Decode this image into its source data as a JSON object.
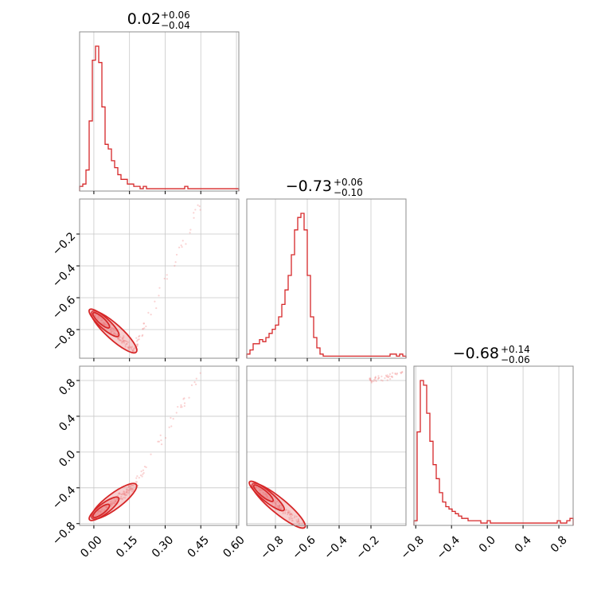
{
  "chart_data": {
    "type": "corner",
    "color": "#d62728",
    "parameters": [
      {
        "title_value": "0.02",
        "title_upper": "+0.06",
        "title_lower": "−0.04",
        "range": [
          -0.06,
          0.61
        ],
        "ticks": [
          0.0,
          0.15,
          0.3,
          0.45,
          0.6
        ],
        "tick_labels": [
          "0.00",
          "0.15",
          "0.30",
          "0.45",
          "0.60"
        ]
      },
      {
        "title_value": "−0.73",
        "title_upper": "+0.06",
        "title_lower": "−0.10",
        "range": [
          -0.98,
          0.02
        ],
        "ticks": [
          -0.8,
          -0.6,
          -0.4,
          -0.2
        ],
        "tick_labels": [
          "−0.8",
          "−0.6",
          "−0.4",
          "−0.2"
        ]
      },
      {
        "title_value": "−0.68",
        "title_upper": "+0.14",
        "title_lower": "−0.06",
        "range": [
          -0.82,
          0.96
        ],
        "ticks": [
          -0.8,
          -0.4,
          0.0,
          0.4,
          0.8
        ],
        "tick_labels": [
          "−0.8",
          "−0.4",
          "0.0",
          "0.4",
          "0.8"
        ]
      }
    ],
    "histograms": [
      {
        "bin_edges_range": [
          -0.06,
          0.61
        ],
        "counts": [
          2,
          3,
          9,
          30,
          56,
          62,
          55,
          36,
          20,
          18,
          13,
          10,
          7,
          5,
          5,
          3,
          3,
          2,
          2,
          1,
          2,
          1,
          1,
          1,
          1,
          1,
          1,
          1,
          1,
          1,
          1,
          1,
          1,
          2,
          1,
          1,
          1,
          1,
          1,
          1,
          1,
          1,
          1,
          1,
          1,
          1,
          1,
          1,
          1,
          1
        ]
      },
      {
        "bin_edges_range": [
          -0.98,
          0.02
        ],
        "counts": [
          2,
          4,
          7,
          7,
          9,
          8,
          10,
          12,
          14,
          16,
          20,
          26,
          33,
          40,
          50,
          62,
          68,
          70,
          62,
          40,
          20,
          10,
          5,
          2,
          1,
          1,
          1,
          1,
          1,
          1,
          1,
          1,
          1,
          1,
          1,
          1,
          1,
          1,
          1,
          1,
          1,
          1,
          1,
          1,
          1,
          2,
          2,
          1,
          2,
          1
        ]
      },
      {
        "bin_edges_range": [
          -0.82,
          0.96
        ],
        "counts": [
          2,
          40,
          62,
          60,
          48,
          36,
          26,
          20,
          14,
          10,
          8,
          7,
          6,
          5,
          4,
          3,
          3,
          2,
          2,
          2,
          2,
          1,
          1,
          2,
          1,
          1,
          1,
          1,
          1,
          1,
          1,
          1,
          1,
          1,
          1,
          1,
          1,
          1,
          1,
          1,
          1,
          1,
          1,
          1,
          1,
          2,
          1,
          1,
          2,
          3
        ]
      }
    ],
    "pairs": [
      {
        "x_param": 0,
        "y_param": 1,
        "relation": "y decreases from −0.70 at x≈0.00 to −0.93 at x≈0.17; sparse tail rising to y≈0.0 near x≈0.45"
      },
      {
        "x_param": 0,
        "y_param": 2,
        "relation": "y increases from −0.72 at x≈0.00 to −0.38 at x≈0.17; sparse tail continuing to y≈0.9 near x≈0.45"
      },
      {
        "x_param": 1,
        "y_param": 2,
        "relation": "y decreases from −0.38 at x≈−0.93 to −0.82 at x≈−0.63; sparse tail near y≈0.85 for x>−0.2"
      }
    ]
  }
}
